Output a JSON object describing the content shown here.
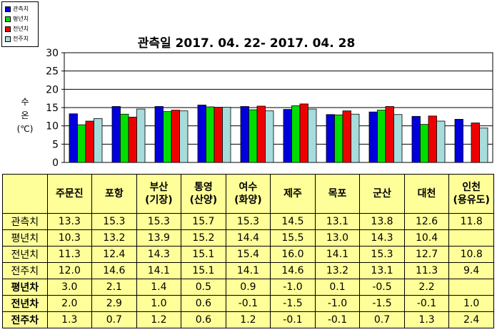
{
  "chart_data": {
    "type": "bar",
    "title": "관측일 2017. 04. 22- 2017. 04. 28",
    "ylabel": "수\n온\n(℃)",
    "ylim": [
      0,
      30
    ],
    "yticks": [
      0,
      5,
      10,
      15,
      20,
      25,
      30
    ],
    "grid": true,
    "legend_position": "top-left",
    "categories": [
      "주문진",
      "포항",
      "부산(기장)",
      "통영(산양)",
      "여수(화양)",
      "제주",
      "목포",
      "군산",
      "대천",
      "인천(용유도)"
    ],
    "series": [
      {
        "name": "관측치",
        "color": "#0000dd",
        "values": [
          13.3,
          15.3,
          15.3,
          15.7,
          15.3,
          14.5,
          13.1,
          13.8,
          12.6,
          11.8
        ]
      },
      {
        "name": "평년치",
        "color": "#00dd00",
        "values": [
          10.3,
          13.2,
          13.9,
          15.2,
          14.4,
          15.5,
          13.0,
          14.3,
          10.4,
          null
        ]
      },
      {
        "name": "전년치",
        "color": "#ee0000",
        "values": [
          11.3,
          12.4,
          14.3,
          15.1,
          15.4,
          16.0,
          14.1,
          15.3,
          12.7,
          10.8
        ]
      },
      {
        "name": "전주치",
        "color": "#a6dcdc",
        "values": [
          12.0,
          14.6,
          14.1,
          15.1,
          14.1,
          14.6,
          13.2,
          13.1,
          11.3,
          9.4
        ]
      }
    ]
  },
  "table": {
    "header": [
      "",
      "주문진",
      "포항",
      "부산\n(기장)",
      "통영\n(산양)",
      "여수\n(화양)",
      "제주",
      "목포",
      "군산",
      "대천",
      "인천\n(용유도)"
    ],
    "rows": [
      {
        "label": "관측치",
        "diff": false,
        "cells": [
          "13.3",
          "15.3",
          "15.3",
          "15.7",
          "15.3",
          "14.5",
          "13.1",
          "13.8",
          "12.6",
          "11.8"
        ]
      },
      {
        "label": "평년치",
        "diff": false,
        "cells": [
          "10.3",
          "13.2",
          "13.9",
          "15.2",
          "14.4",
          "15.5",
          "13.0",
          "14.3",
          "10.4",
          ""
        ]
      },
      {
        "label": "전년치",
        "diff": false,
        "cells": [
          "11.3",
          "12.4",
          "14.3",
          "15.1",
          "15.4",
          "16.0",
          "14.1",
          "15.3",
          "12.7",
          "10.8"
        ]
      },
      {
        "label": "전주치",
        "diff": false,
        "cells": [
          "12.0",
          "14.6",
          "14.1",
          "15.1",
          "14.1",
          "14.6",
          "13.2",
          "13.1",
          "11.3",
          "9.4"
        ]
      },
      {
        "label": "평년차",
        "diff": true,
        "cells": [
          "3.0",
          "2.1",
          "1.4",
          "0.5",
          "0.9",
          "-1.0",
          "0.1",
          "-0.5",
          "2.2",
          ""
        ]
      },
      {
        "label": "전년차",
        "diff": true,
        "cells": [
          "2.0",
          "2.9",
          "1.0",
          "0.6",
          "-0.1",
          "-1.5",
          "-1.0",
          "-1.5",
          "-0.1",
          "1.0"
        ]
      },
      {
        "label": "전주차",
        "diff": true,
        "cells": [
          "1.3",
          "0.7",
          "1.2",
          "0.6",
          "1.2",
          "-0.1",
          "-0.1",
          "0.7",
          "1.3",
          "2.4"
        ]
      }
    ]
  }
}
